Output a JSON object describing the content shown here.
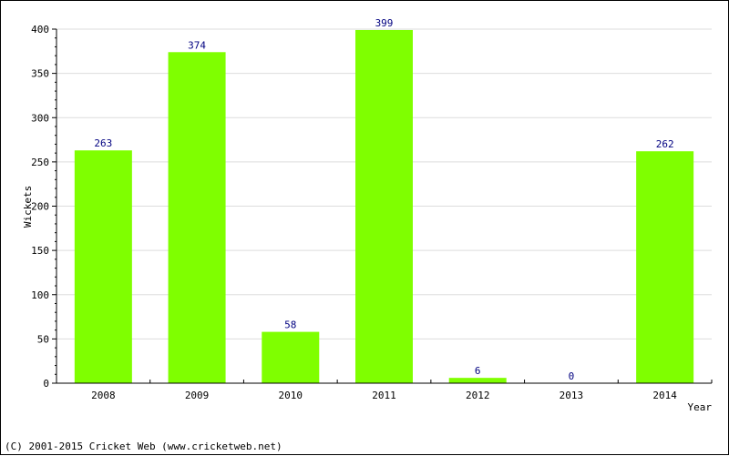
{
  "chart_data": {
    "type": "bar",
    "categories": [
      "2008",
      "2009",
      "2010",
      "2011",
      "2012",
      "2013",
      "2014"
    ],
    "values": [
      263,
      374,
      58,
      399,
      6,
      0,
      262
    ],
    "xlabel": "Year",
    "ylabel": "Wickets",
    "ylim": [
      0,
      400
    ],
    "yticks": [
      0,
      50,
      100,
      150,
      200,
      250,
      300,
      350,
      400
    ],
    "grid": true,
    "colors": {
      "bar": "#7fff00",
      "value_label": "#000080",
      "grid": "#dddddd",
      "axis": "#000000"
    }
  },
  "footer": {
    "copyright": "(C) 2001-2015 Cricket Web (www.cricketweb.net)"
  }
}
